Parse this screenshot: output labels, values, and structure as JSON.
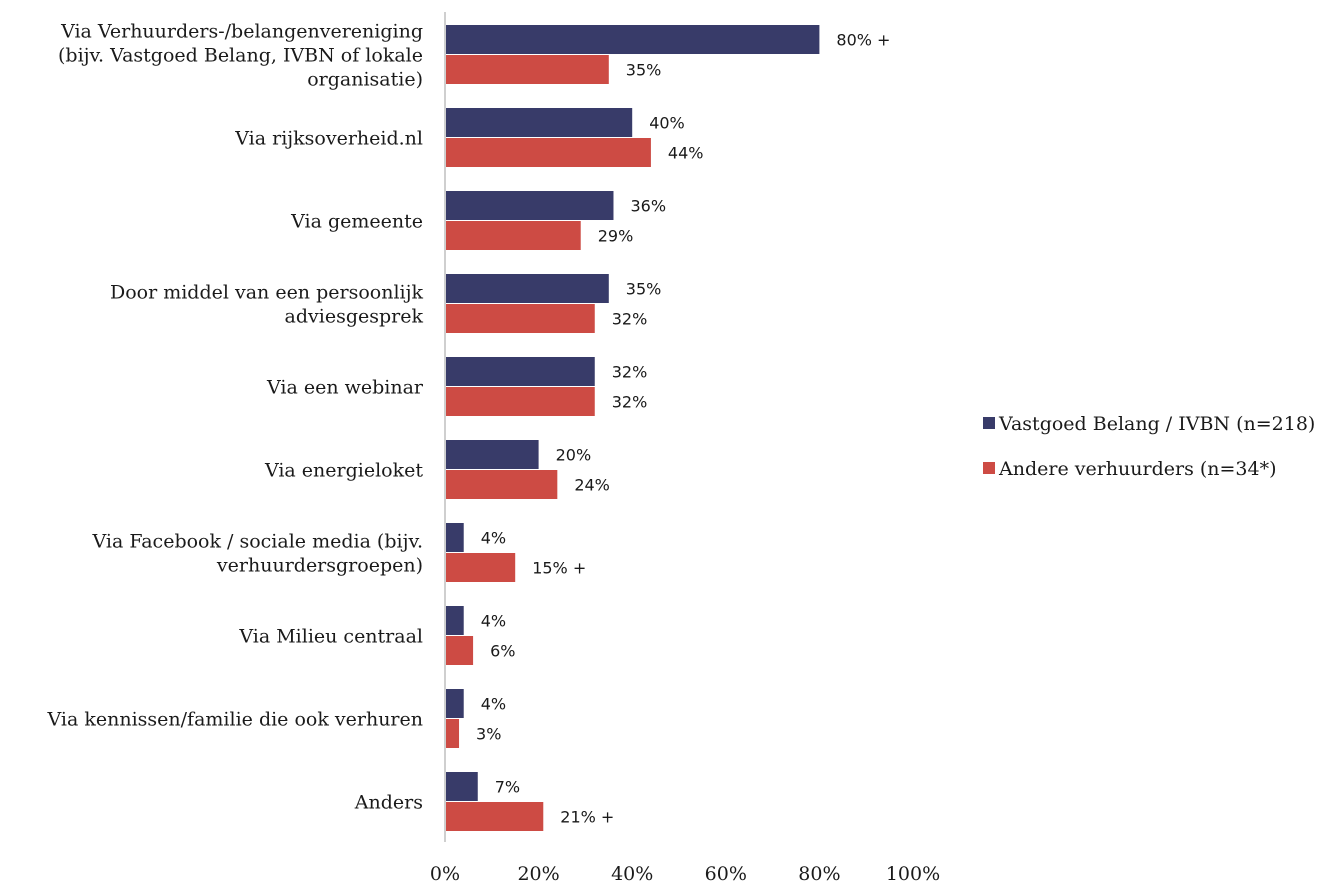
{
  "chart_data": {
    "type": "bar",
    "orientation": "horizontal",
    "categories": [
      [
        "Via Verhuurders-/belangenvereniging",
        "(bijv. Vastgoed Belang, IVBN of lokale",
        "organisatie)"
      ],
      [
        "Via rijksoverheid.nl"
      ],
      [
        "Via gemeente"
      ],
      [
        "Door middel van een persoonlijk",
        "adviesgesprek"
      ],
      [
        "Via een webinar"
      ],
      [
        "Via energieloket"
      ],
      [
        "Via Facebook / sociale media (bijv.",
        "verhuurdersgroepen)"
      ],
      [
        "Via Milieu centraal"
      ],
      [
        "Via kennissen/familie die ook verhuren"
      ],
      [
        "Anders"
      ]
    ],
    "series": [
      {
        "name": "Vastgoed Belang / IVBN (n=218)",
        "color": "#383B69",
        "values": [
          80,
          40,
          36,
          35,
          32,
          20,
          4,
          4,
          4,
          7
        ],
        "labels": [
          "80% +",
          "40%",
          "36%",
          "35%",
          "32%",
          "20%",
          "4%",
          "4%",
          "4%",
          "7%"
        ]
      },
      {
        "name": "Andere verhuurders (n=34*)",
        "color": "#CD4B44",
        "values": [
          35,
          44,
          29,
          32,
          32,
          24,
          15,
          6,
          3,
          21
        ],
        "labels": [
          "35%",
          "44%",
          "29%",
          "32%",
          "32%",
          "24%",
          "15% +",
          "6%",
          "3%",
          "21% +"
        ]
      }
    ],
    "xlim": [
      0,
      100
    ],
    "xticks": [
      "0%",
      "20%",
      "40%",
      "60%",
      "80%",
      "100%"
    ],
    "legend": "right",
    "grid": false
  }
}
